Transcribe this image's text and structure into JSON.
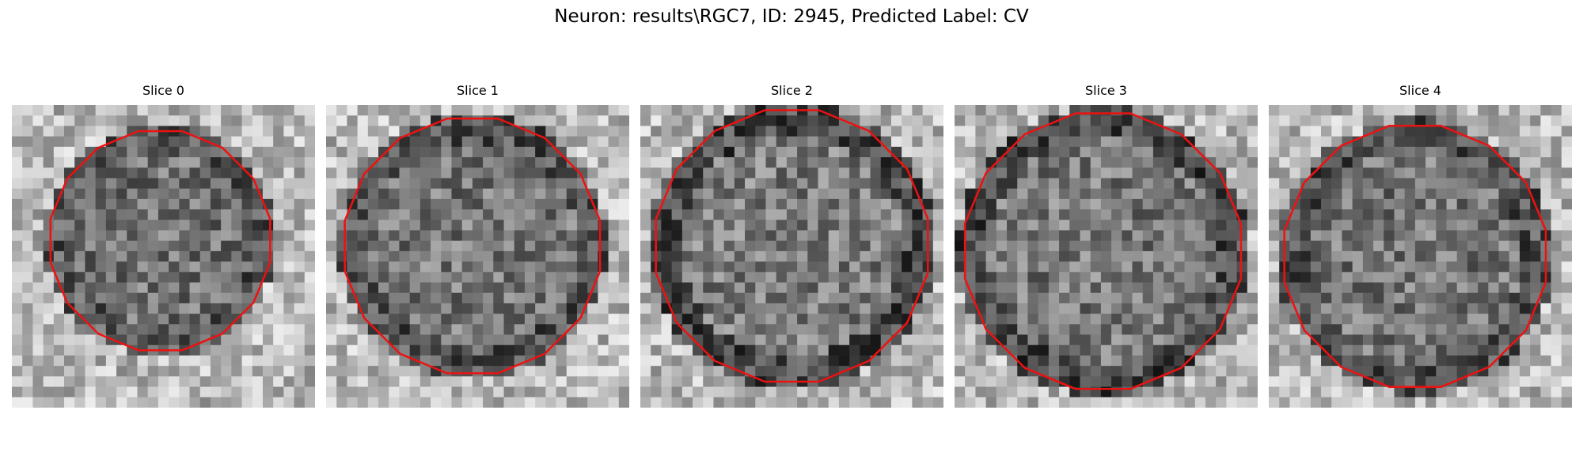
{
  "figure": {
    "title": "Neuron: results\\RGC7, ID: 2945, Predicted Label: CV"
  },
  "panels": [
    {
      "title": "Slice 0",
      "description_icon": "grayscale-noise-image-with-red-contour"
    },
    {
      "title": "Slice 1",
      "description_icon": "grayscale-noise-image-with-red-contour"
    },
    {
      "title": "Slice 2",
      "description_icon": "grayscale-noise-image-with-red-contour"
    },
    {
      "title": "Slice 3",
      "description_icon": "grayscale-noise-image-with-red-contour"
    },
    {
      "title": "Slice 4",
      "description_icon": "grayscale-noise-image-with-red-contour"
    }
  ],
  "colors": {
    "contour": "#ee1111",
    "background": "#ffffff"
  }
}
